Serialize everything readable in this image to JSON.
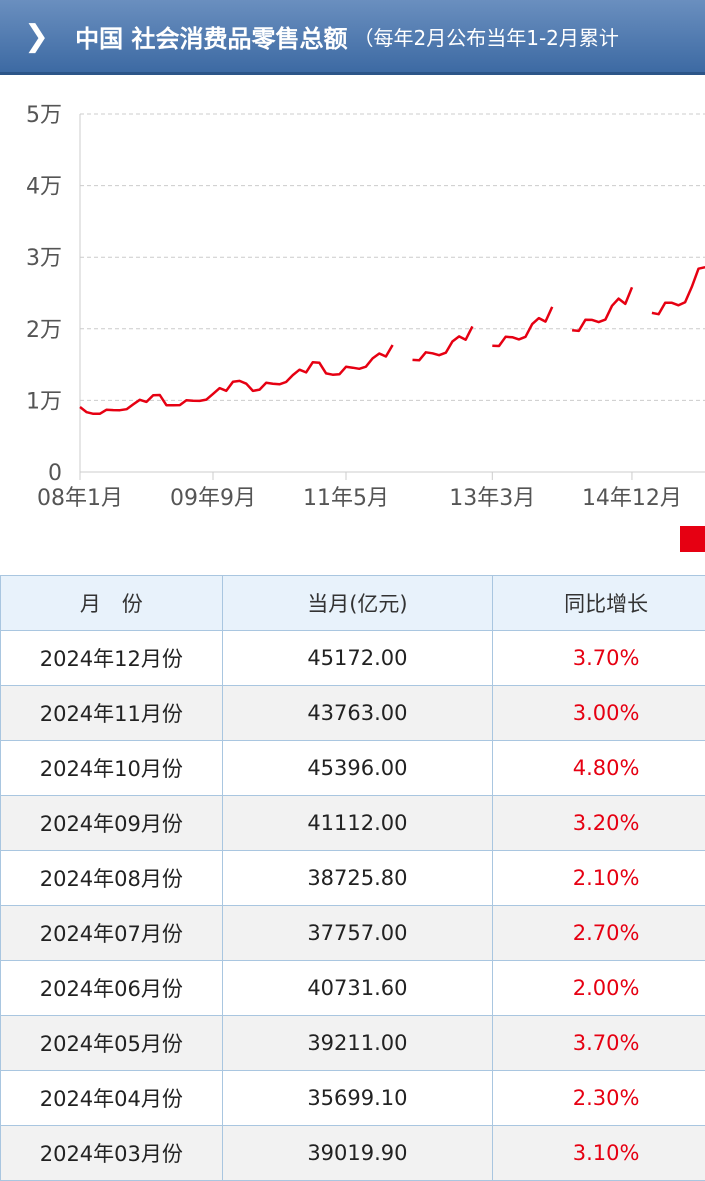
{
  "header": {
    "title": "中国 社会消费品零售总额",
    "subtitle": "（每年2月公布当年1-2月累计"
  },
  "chart_data": {
    "type": "line",
    "categories": [
      "08年1月",
      null,
      null,
      null,
      null,
      null,
      null,
      null,
      null,
      null,
      null,
      null,
      null,
      null,
      null,
      null,
      null,
      null,
      null,
      null,
      "09年9月",
      null,
      null,
      null,
      null,
      null,
      null,
      null,
      null,
      null,
      null,
      null,
      null,
      null,
      null,
      null,
      null,
      null,
      null,
      null,
      "11年5月",
      null,
      null,
      null,
      null,
      null,
      null,
      null,
      null,
      null,
      null,
      null,
      null,
      null,
      null,
      null,
      null,
      null,
      null,
      null,
      null,
      null,
      "13年3月",
      null,
      null,
      null,
      null,
      null,
      null,
      null,
      null,
      null,
      null,
      null,
      null,
      null,
      null,
      null,
      null,
      null,
      null,
      null,
      null,
      "14年12月",
      null,
      null,
      null,
      null,
      null,
      null,
      null,
      null,
      null,
      null,
      null
    ],
    "series": [
      {
        "color": "#e60012",
        "values": [
          9077,
          8355,
          8123,
          8142,
          8703,
          8642,
          8629,
          8767,
          9447,
          10083,
          9791,
          10729,
          10757,
          9324,
          9317,
          9343,
          10028,
          9942,
          9936,
          10115,
          10913,
          11718,
          11339,
          12610,
          12718,
          12334,
          11322,
          11510,
          12455,
          12330,
          12252,
          12570,
          13537,
          14285,
          13911,
          15330,
          15249,
          13769,
          13588,
          13649,
          14697,
          14565,
          14408,
          14705,
          15865,
          16546,
          16128,
          17740,
          null,
          null,
          15650,
          15603,
          16715,
          16584,
          16315,
          16659,
          18227,
          18934,
          18477,
          20334,
          null,
          null,
          17640,
          17600,
          18886,
          18827,
          18513,
          18886,
          20653,
          21491,
          21012,
          23060,
          null,
          null,
          19801,
          19701,
          21250,
          21243,
          20932,
          21288,
          23210,
          24219,
          23476,
          25801,
          null,
          null,
          22227,
          22037,
          23652,
          23632,
          23283,
          23713,
          25854,
          28400,
          28600
        ]
      }
    ],
    "ylim": [
      0,
      50000
    ],
    "yticks": [
      0,
      {
        "value": 10000,
        "label": "1万"
      },
      {
        "value": 20000,
        "label": "2万"
      },
      {
        "value": 30000,
        "label": "3万"
      },
      {
        "value": 40000,
        "label": "4万"
      },
      {
        "value": 50000,
        "label": "5万"
      }
    ],
    "grid": true
  },
  "table": {
    "header": [
      "月　份",
      "当月(亿元)",
      "同比增长"
    ],
    "rows": [
      [
        "2024年12月份",
        "45172.00",
        "3.70%"
      ],
      [
        "2024年11月份",
        "43763.00",
        "3.00%"
      ],
      [
        "2024年10月份",
        "45396.00",
        "4.80%"
      ],
      [
        "2024年09月份",
        "41112.00",
        "3.20%"
      ],
      [
        "2024年08月份",
        "38725.80",
        "2.10%"
      ],
      [
        "2024年07月份",
        "37757.00",
        "2.70%"
      ],
      [
        "2024年06月份",
        "40731.60",
        "2.00%"
      ],
      [
        "2024年05月份",
        "39211.00",
        "3.70%"
      ],
      [
        "2024年04月份",
        "35699.10",
        "2.30%"
      ],
      [
        "2024年03月份",
        "39019.90",
        "3.10%"
      ]
    ]
  }
}
